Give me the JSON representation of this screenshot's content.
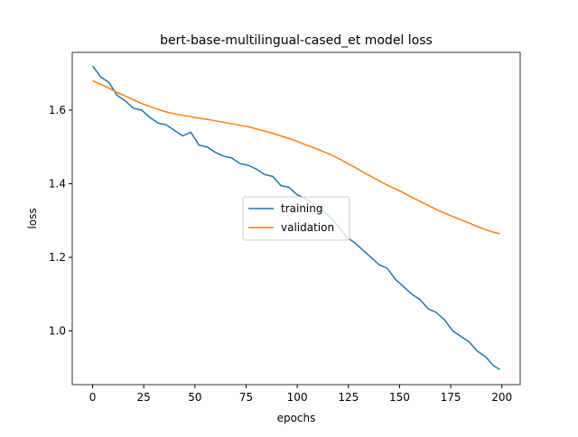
{
  "chart_data": {
    "type": "line",
    "title": "bert-base-multilingual-cased_et model loss",
    "x_label": "epochs",
    "y_label": "loss",
    "x": [
      0,
      4,
      8,
      12,
      16,
      20,
      24,
      28,
      32,
      36,
      40,
      44,
      48,
      52,
      56,
      60,
      64,
      68,
      72,
      76,
      80,
      84,
      88,
      92,
      96,
      100,
      104,
      108,
      112,
      116,
      120,
      124,
      128,
      132,
      136,
      140,
      144,
      148,
      152,
      156,
      160,
      164,
      168,
      172,
      176,
      180,
      184,
      188,
      192,
      196,
      199
    ],
    "series": [
      {
        "name": "training",
        "color": "#1f77b4",
        "values": [
          1.72,
          1.69,
          1.675,
          1.64,
          1.625,
          1.605,
          1.6,
          1.58,
          1.565,
          1.56,
          1.545,
          1.53,
          1.54,
          1.505,
          1.5,
          1.485,
          1.475,
          1.47,
          1.455,
          1.45,
          1.44,
          1.425,
          1.42,
          1.395,
          1.39,
          1.37,
          1.36,
          1.345,
          1.33,
          1.31,
          1.285,
          1.255,
          1.24,
          1.22,
          1.2,
          1.18,
          1.17,
          1.14,
          1.12,
          1.1,
          1.085,
          1.06,
          1.05,
          1.03,
          1.0,
          0.985,
          0.97,
          0.945,
          0.93,
          0.905,
          0.895
        ]
      },
      {
        "name": "validation",
        "color": "#ff7f0e",
        "values": [
          1.68,
          1.67,
          1.66,
          1.648,
          1.638,
          1.628,
          1.618,
          1.61,
          1.602,
          1.595,
          1.59,
          1.586,
          1.582,
          1.578,
          1.575,
          1.571,
          1.567,
          1.563,
          1.559,
          1.555,
          1.549,
          1.543,
          1.537,
          1.53,
          1.523,
          1.515,
          1.506,
          1.498,
          1.489,
          1.48,
          1.469,
          1.457,
          1.445,
          1.432,
          1.42,
          1.408,
          1.396,
          1.386,
          1.375,
          1.363,
          1.352,
          1.341,
          1.33,
          1.32,
          1.311,
          1.302,
          1.293,
          1.284,
          1.275,
          1.268,
          1.264
        ]
      }
    ],
    "xlim": [
      -9.95,
      208.95
    ],
    "xticks": [
      0,
      25,
      50,
      75,
      100,
      125,
      150,
      175,
      200
    ],
    "ylim": [
      0.854,
      1.757
    ],
    "yticks": [
      {
        "value": 1,
        "label": "1.0"
      },
      {
        "value": 1.2,
        "label": "1.2"
      },
      {
        "value": 1.4,
        "label": "1.4"
      },
      {
        "value": 1.6,
        "label": "1.6"
      }
    ],
    "legend": "center"
  }
}
